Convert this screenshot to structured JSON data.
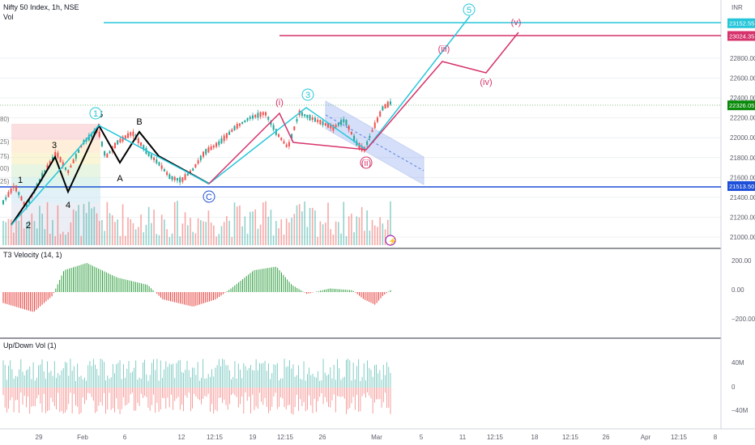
{
  "header": {
    "symbol": "Nifty 50 Index, 1h, NSE",
    "vol_label": "Vol",
    "currency": "INR"
  },
  "panes": {
    "t3_title": "T3 Velocity (14, 1)",
    "updown_title": "Up/Down Vol (1)"
  },
  "colors": {
    "up": "#26a69a",
    "down": "#ef5350",
    "velocity_up": "#2e9e3e",
    "velocity_down": "#e53935",
    "cyan": "#26c6da",
    "magenta": "#d6336c",
    "support": "#1e4fd8",
    "last_price": "#0a8a0a",
    "channel": "#5b7fe0"
  },
  "chart_data": [
    {
      "type": "candlestick",
      "title": "Nifty 50 Index, 1h, NSE",
      "ylim": [
        20900,
        23300
      ],
      "price_ticks": [
        "21000.00",
        "21200.00",
        "21400.00",
        "21600.00",
        "21800.00",
        "22000.00",
        "22200.00",
        "22400.00",
        "22600.00",
        "22800.00"
      ],
      "x_ticks": [
        "29",
        "Feb",
        "6",
        "12",
        "12:15",
        "19",
        "12:15",
        "26",
        "Mar",
        "5",
        "11",
        "12:15",
        "18",
        "12:15",
        "26",
        "Apr",
        "12:15",
        "8"
      ],
      "price_labels": [
        {
          "value": 23152.55,
          "text": "23152.55",
          "color": "#26c6da"
        },
        {
          "value": 23024.35,
          "text": "23024.35",
          "color": "#d6336c"
        },
        {
          "value": 22326.05,
          "text": "22326.05",
          "color": "#0a8a0a"
        },
        {
          "value": 21513.5,
          "text": "21513.50",
          "color": "#1e4fd8"
        }
      ],
      "fib_labels": [
        "80)",
        "25)",
        "75)",
        "00)",
        "25)"
      ],
      "path_points": [
        {
          "x": 0,
          "y": 21350
        },
        {
          "x": 3,
          "y": 21520
        },
        {
          "x": 6,
          "y": 21300
        },
        {
          "x": 10,
          "y": 21600
        },
        {
          "x": 14,
          "y": 21850
        },
        {
          "x": 17,
          "y": 21650
        },
        {
          "x": 21,
          "y": 21950
        },
        {
          "x": 25,
          "y": 22080
        },
        {
          "x": 27,
          "y": 21800
        },
        {
          "x": 30,
          "y": 21950
        },
        {
          "x": 34,
          "y": 22050
        },
        {
          "x": 38,
          "y": 21850
        },
        {
          "x": 41,
          "y": 21740
        },
        {
          "x": 44,
          "y": 21600
        },
        {
          "x": 47,
          "y": 21570
        },
        {
          "x": 50,
          "y": 21680
        },
        {
          "x": 53,
          "y": 21850
        },
        {
          "x": 57,
          "y": 21950
        },
        {
          "x": 61,
          "y": 22100
        },
        {
          "x": 65,
          "y": 22200
        },
        {
          "x": 69,
          "y": 22250
        },
        {
          "x": 72,
          "y": 22050
        },
        {
          "x": 75,
          "y": 21900
        },
        {
          "x": 78,
          "y": 22250
        },
        {
          "x": 81,
          "y": 22200
        },
        {
          "x": 84,
          "y": 22150
        },
        {
          "x": 87,
          "y": 22100
        },
        {
          "x": 90,
          "y": 22180
        },
        {
          "x": 93,
          "y": 21950
        },
        {
          "x": 95,
          "y": 21870
        },
        {
          "x": 97,
          "y": 22050
        },
        {
          "x": 100,
          "y": 22300
        },
        {
          "x": 102,
          "y": 22350
        }
      ],
      "wave_labels": [
        {
          "text": "1",
          "color": "#000000"
        },
        {
          "text": "2",
          "color": "#000000"
        },
        {
          "text": "3",
          "color": "#000000"
        },
        {
          "text": "4",
          "color": "#000000"
        },
        {
          "text": "5",
          "color": "#000000"
        },
        {
          "text": "A",
          "color": "#000000"
        },
        {
          "text": "B",
          "color": "#000000"
        },
        {
          "text": "C",
          "color": "#1e4fd8"
        },
        {
          "text": "(i)",
          "color": "#d6336c"
        },
        {
          "text": "(ii)",
          "color": "#d6336c"
        },
        {
          "text": "3",
          "color": "#26c6da"
        },
        {
          "text": "(iii)",
          "color": "#d6336c"
        },
        {
          "text": "(iv)",
          "color": "#d6336c"
        },
        {
          "text": "5",
          "color": "#26c6da"
        },
        {
          "text": "(v)",
          "color": "#d6336c"
        },
        {
          "text": "1",
          "color": "#26c6da"
        }
      ]
    },
    {
      "type": "bar",
      "title": "T3 Velocity (14, 1)",
      "ylim": [
        -300,
        300
      ],
      "y_ticks": [
        "200.00",
        "0.00",
        "−200.00"
      ]
    },
    {
      "type": "bar",
      "title": "Up/Down Vol (1)",
      "y_ticks": [
        "40M",
        "0",
        "−40M"
      ]
    }
  ]
}
